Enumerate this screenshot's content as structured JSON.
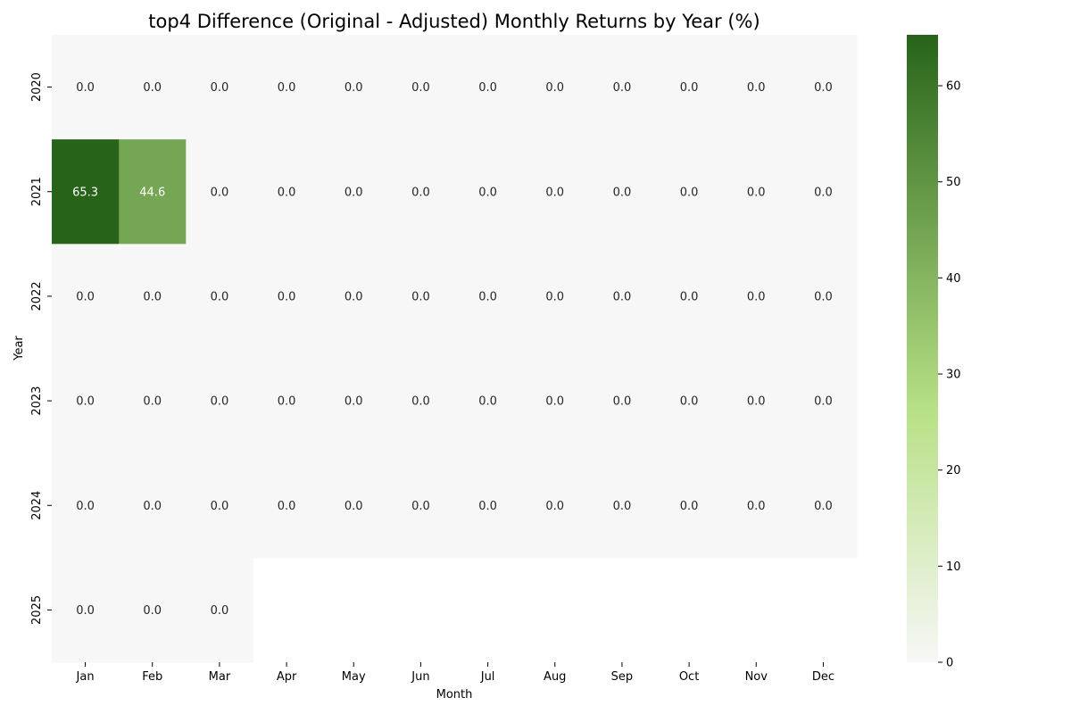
{
  "chart_data": {
    "type": "heatmap",
    "title": "top4 Difference (Original - Adjusted) Monthly Returns by Year (%)",
    "xlabel": "Month",
    "ylabel": "Year",
    "x": [
      "Jan",
      "Feb",
      "Mar",
      "Apr",
      "May",
      "Jun",
      "Jul",
      "Aug",
      "Sep",
      "Oct",
      "Nov",
      "Dec"
    ],
    "y": [
      "2020",
      "2021",
      "2022",
      "2023",
      "2024",
      "2025"
    ],
    "values": [
      [
        0.0,
        0.0,
        0.0,
        0.0,
        0.0,
        0.0,
        0.0,
        0.0,
        0.0,
        0.0,
        0.0,
        0.0
      ],
      [
        65.3,
        44.6,
        0.0,
        0.0,
        0.0,
        0.0,
        0.0,
        0.0,
        0.0,
        0.0,
        0.0,
        0.0
      ],
      [
        0.0,
        0.0,
        0.0,
        0.0,
        0.0,
        0.0,
        0.0,
        0.0,
        0.0,
        0.0,
        0.0,
        0.0
      ],
      [
        0.0,
        0.0,
        0.0,
        0.0,
        0.0,
        0.0,
        0.0,
        0.0,
        0.0,
        0.0,
        0.0,
        0.0
      ],
      [
        0.0,
        0.0,
        0.0,
        0.0,
        0.0,
        0.0,
        0.0,
        0.0,
        0.0,
        0.0,
        0.0,
        0.0
      ],
      [
        0.0,
        0.0,
        0.0,
        null,
        null,
        null,
        null,
        null,
        null,
        null,
        null,
        null
      ]
    ],
    "value_labels": [
      [
        "0.0",
        "0.0",
        "0.0",
        "0.0",
        "0.0",
        "0.0",
        "0.0",
        "0.0",
        "0.0",
        "0.0",
        "0.0",
        "0.0"
      ],
      [
        "65.3",
        "44.6",
        "0.0",
        "0.0",
        "0.0",
        "0.0",
        "0.0",
        "0.0",
        "0.0",
        "0.0",
        "0.0",
        "0.0"
      ],
      [
        "0.0",
        "0.0",
        "0.0",
        "0.0",
        "0.0",
        "0.0",
        "0.0",
        "0.0",
        "0.0",
        "0.0",
        "0.0",
        "0.0"
      ],
      [
        "0.0",
        "0.0",
        "0.0",
        "0.0",
        "0.0",
        "0.0",
        "0.0",
        "0.0",
        "0.0",
        "0.0",
        "0.0",
        "0.0"
      ],
      [
        "0.0",
        "0.0",
        "0.0",
        "0.0",
        "0.0",
        "0.0",
        "0.0",
        "0.0",
        "0.0",
        "0.0",
        "0.0",
        "0.0"
      ],
      [
        "0.0",
        "0.0",
        "0.0",
        "",
        "",
        "",
        "",
        "",
        "",
        "",
        "",
        ""
      ]
    ],
    "colorbar": {
      "min": 0,
      "max": 65.3,
      "ticks": [
        0,
        10,
        20,
        30,
        40,
        50,
        60
      ],
      "tick_labels": [
        "0",
        "10",
        "20",
        "30",
        "40",
        "50",
        "60"
      ]
    },
    "colors": {
      "low": "#f7f7f7",
      "mid": "#b8e186",
      "high": "#276419",
      "text_dark": "#262626",
      "text_light": "#ffffff"
    }
  }
}
